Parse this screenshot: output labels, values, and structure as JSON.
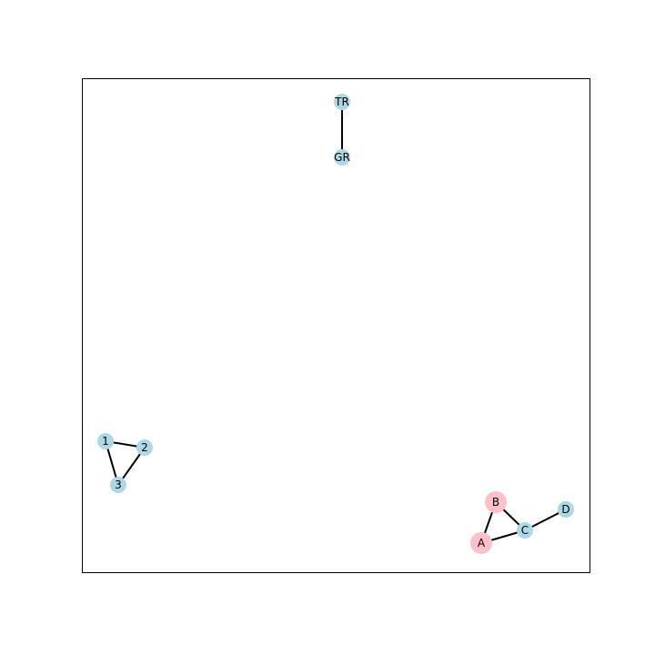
{
  "graph": {
    "edges": [
      [
        "TR",
        "GR"
      ],
      [
        "1",
        "2"
      ],
      [
        "1",
        "3"
      ],
      [
        "2",
        "3"
      ],
      [
        "B",
        "A"
      ],
      [
        "B",
        "C"
      ],
      [
        "A",
        "C"
      ],
      [
        "C",
        "D"
      ]
    ],
    "nodes": [
      {
        "id": "TR",
        "label": "TR",
        "color": "#add8e6",
        "size": "normal"
      },
      {
        "id": "GR",
        "label": "GR",
        "color": "#add8e6",
        "size": "normal"
      },
      {
        "id": "1",
        "label": "1",
        "color": "#add8e6",
        "size": "normal"
      },
      {
        "id": "2",
        "label": "2",
        "color": "#add8e6",
        "size": "normal"
      },
      {
        "id": "3",
        "label": "3",
        "color": "#add8e6",
        "size": "normal"
      },
      {
        "id": "B",
        "label": "B",
        "color": "#ffc0cb",
        "size": "large"
      },
      {
        "id": "A",
        "label": "A",
        "color": "#ffc0cb",
        "size": "large"
      },
      {
        "id": "C",
        "label": "C",
        "color": "#add8e6",
        "size": "normal"
      },
      {
        "id": "D",
        "label": "D",
        "color": "#add8e6",
        "size": "normal"
      }
    ]
  },
  "colors": {
    "frame": "#000000",
    "edge": "#000000",
    "default_node": "#add8e6",
    "highlight_node": "#ffc0cb"
  }
}
